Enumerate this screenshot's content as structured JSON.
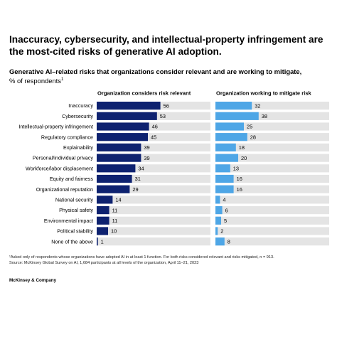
{
  "title": "Inaccuracy, cybersecurity, and intellectual-property infringement are the most-cited risks of generative AI adoption.",
  "subtitle_main": "Generative AI–related risks that organizations consider relevant and are working to mitigate,",
  "subtitle_unit": "% of respondents",
  "subtitle_sup": "1",
  "footnote_1": "¹Asked only of respondents whose organizations have adopted AI in at least 1 function. For both risks considered relevant and risks mitigated, n = 913.",
  "footnote_2": "Source: McKinsey Global Survey on AI, 1,684 participants at all levels of the organization, April 11–21, 2023",
  "brand": "McKinsey & Company",
  "colors": {
    "relevant": "#0e2270",
    "mitigate": "#4ea6e6",
    "track": "#e4e4e4"
  },
  "chart_data": {
    "type": "bar",
    "orientation": "horizontal",
    "categories": [
      "Inaccuracy",
      "Cybersecurity",
      "Intellectual-property infringement",
      "Regulatory compliance",
      "Explainability",
      "Personal/individual privacy",
      "Workforce/labor displacement",
      "Equity and fairness",
      "Organizational reputation",
      "National security",
      "Physical safety",
      "Environmental impact",
      "Political stability",
      "None of the above"
    ],
    "series": [
      {
        "name": "Organization considers risk relevant",
        "values": [
          56,
          53,
          46,
          45,
          39,
          39,
          34,
          31,
          29,
          14,
          11,
          11,
          10,
          1
        ]
      },
      {
        "name": "Organization working to mitigate risk",
        "values": [
          32,
          38,
          25,
          28,
          18,
          20,
          13,
          16,
          16,
          4,
          6,
          5,
          2,
          8
        ]
      }
    ],
    "xlim": [
      0,
      100
    ],
    "grid": false,
    "legend": "panel headers"
  }
}
